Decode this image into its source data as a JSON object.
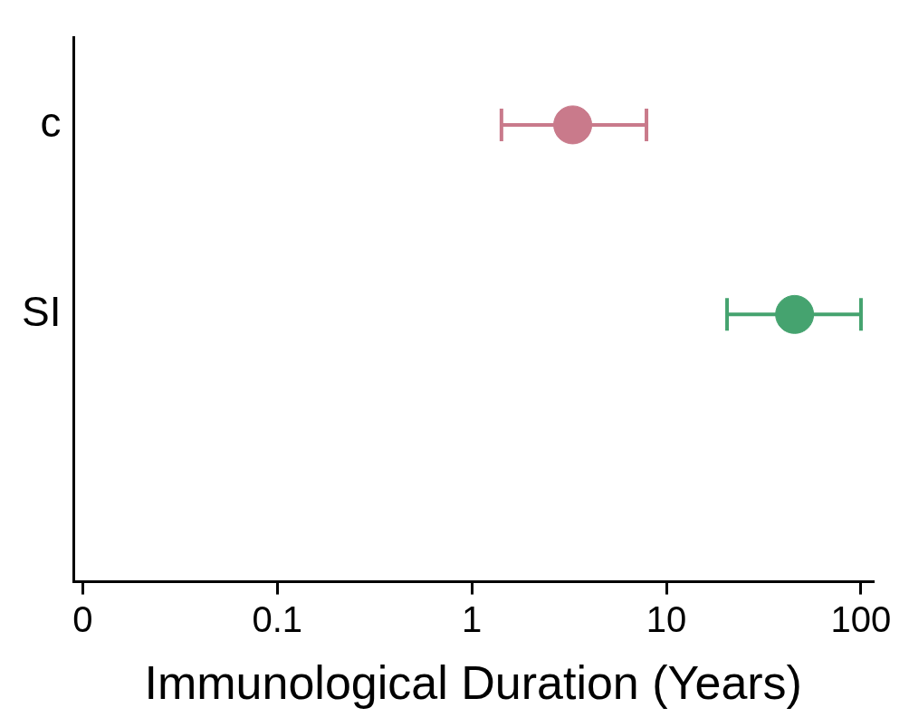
{
  "chart_data": {
    "type": "scatter",
    "orientation": "horizontal",
    "xlabel": "Immunological Duration (Years)",
    "categories": [
      "c",
      "SI"
    ],
    "values": [
      3.3,
      45.6
    ],
    "errors": [
      [
        1.42,
        7.9
      ],
      [
        20.5,
        100
      ]
    ],
    "colors": [
      "#c97a8b",
      "#45a36f"
    ],
    "log": "x",
    "xlim": [
      0.009,
      115
    ],
    "xticks": [
      {
        "value": 0.01,
        "label": "0"
      },
      {
        "value": 0.1,
        "label": "0.1"
      },
      {
        "value": 1,
        "label": "1"
      },
      {
        "value": 10,
        "label": "10"
      },
      {
        "value": 100,
        "label": "100"
      }
    ],
    "marker": "circle",
    "grid": false,
    "legend": false
  }
}
